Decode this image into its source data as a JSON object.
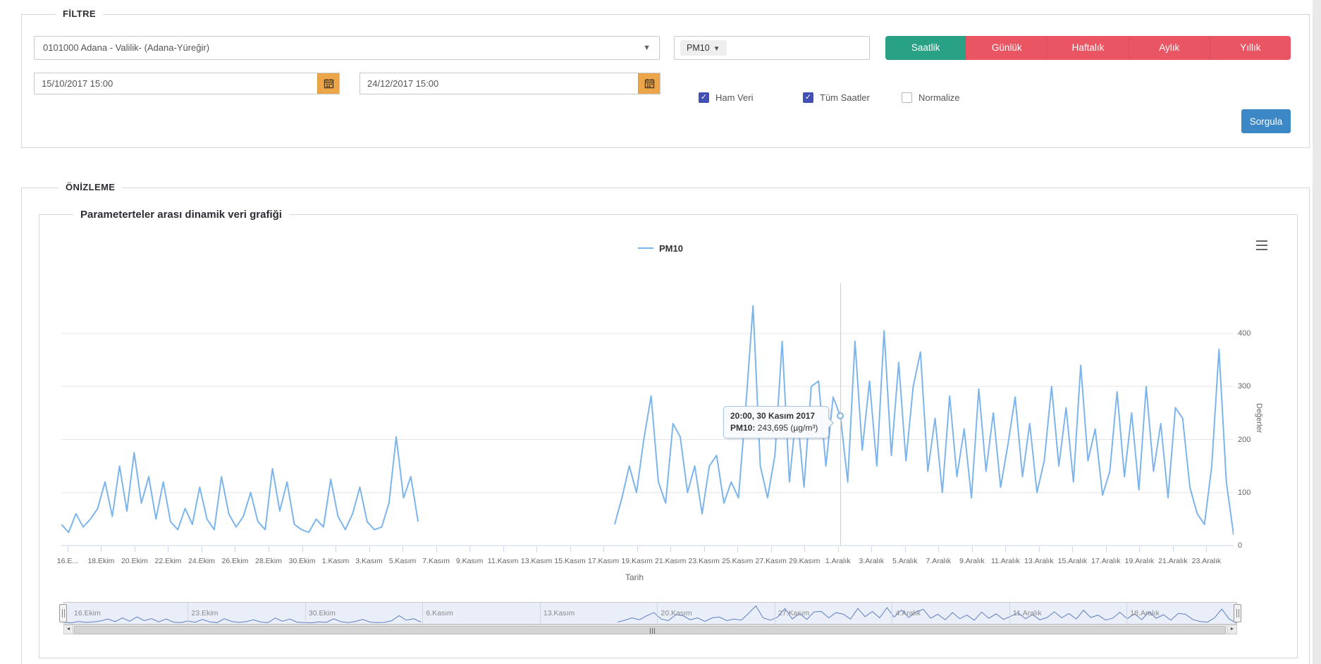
{
  "filter": {
    "legend": "FİLTRE",
    "station_select": {
      "value": "0101000 Adana - Valilik- (Adana-Yüreğir)"
    },
    "parameter_select": {
      "value": "PM10"
    },
    "period_buttons": [
      {
        "label": "Saatlik",
        "active": true
      },
      {
        "label": "Günlük",
        "active": false
      },
      {
        "label": "Haftalık",
        "active": false
      },
      {
        "label": "Aylık",
        "active": false
      },
      {
        "label": "Yıllık",
        "active": false
      }
    ],
    "date_from": "15/10/2017 15:00",
    "date_to": "24/12/2017 15:00",
    "checkboxes": [
      {
        "label": "Ham Veri",
        "checked": true
      },
      {
        "label": "Tüm Saatler",
        "checked": true
      },
      {
        "label": "Normalize",
        "checked": false
      }
    ],
    "submit_label": "Sorgula",
    "colors": {
      "active_green": "#28a184",
      "inactive_red": "#e95562",
      "calendar_orange": "#eda54a",
      "submit_blue": "#3c87c5",
      "checkbox_blue": "#4050b5"
    }
  },
  "preview": {
    "legend": "ÖNİZLEME",
    "chart_box_title": "Parameterteler arası dinamik veri grafiği"
  },
  "chart_data": {
    "type": "line",
    "title": "",
    "xlabel": "Tarih",
    "ylabel": "Değerler",
    "y_ticks": [
      0,
      100,
      200,
      300,
      400
    ],
    "ylim": [
      0,
      490
    ],
    "grid": true,
    "legend_position": "top-center",
    "series": [
      {
        "name": "PM10",
        "color": "#7cb5ec",
        "values": [
          40,
          25,
          60,
          35,
          50,
          70,
          120,
          55,
          150,
          65,
          175,
          80,
          130,
          50,
          120,
          45,
          30,
          70,
          40,
          110,
          50,
          30,
          130,
          60,
          35,
          55,
          100,
          45,
          30,
          145,
          65,
          120,
          40,
          30,
          25,
          50,
          35,
          125,
          55,
          30,
          60,
          110,
          45,
          30,
          35,
          80,
          205,
          90,
          130,
          45,
          null,
          null,
          null,
          null,
          null,
          null,
          null,
          null,
          null,
          null,
          null,
          null,
          null,
          null,
          null,
          null,
          null,
          null,
          null,
          null,
          null,
          null,
          null,
          null,
          null,
          null,
          40,
          90,
          150,
          100,
          200,
          282,
          120,
          80,
          230,
          205,
          100,
          150,
          60,
          150,
          170,
          80,
          120,
          90,
          260,
          452,
          150,
          90,
          170,
          385,
          120,
          260,
          110,
          300,
          310,
          150,
          280,
          244,
          120,
          385,
          180,
          310,
          150,
          405,
          170,
          345,
          160,
          300,
          365,
          140,
          240,
          100,
          282,
          130,
          220,
          90,
          295,
          140,
          250,
          110,
          190,
          280,
          130,
          230,
          100,
          160,
          300,
          150,
          260,
          120,
          340,
          160,
          220,
          95,
          140,
          290,
          130,
          250,
          105,
          300,
          140,
          230,
          90,
          260,
          240,
          110,
          60,
          40,
          150,
          370,
          120,
          20
        ]
      }
    ],
    "x_ticks": [
      "16.E...",
      "18.Ekim",
      "20.Ekim",
      "22.Ekim",
      "24.Ekim",
      "26.Ekim",
      "28.Ekim",
      "30.Ekim",
      "1.Kasım",
      "3.Kasım",
      "5.Kasım",
      "7.Kasım",
      "9.Kasım",
      "11.Kasım",
      "13.Kasım",
      "15.Kasım",
      "17.Kasım",
      "19.Kasım",
      "21.Kasım",
      "23.Kasım",
      "25.Kasım",
      "27.Kasım",
      "29.Kasım",
      "1.Aralık",
      "3.Aralık",
      "5.Aralık",
      "7.Aralık",
      "9.Aralık",
      "11.Aralık",
      "13.Aralık",
      "15.Aralık",
      "17.Aralık",
      "19.Aralık",
      "21.Aralık",
      "23.Aralık"
    ],
    "tooltip": {
      "header": "20:00, 30 Kasım 2017",
      "series_label": "PM10:",
      "value": "243,695",
      "unit": "(µg/m³)"
    },
    "navigator_labels": [
      "16.Ekim",
      "23.Ekim",
      "30.Ekim",
      "6.Kasım",
      "13.Kasım",
      "20.Kasım",
      "27.Kasım",
      "4.Aralık",
      "11.Aralık",
      "18.Aralık"
    ]
  }
}
